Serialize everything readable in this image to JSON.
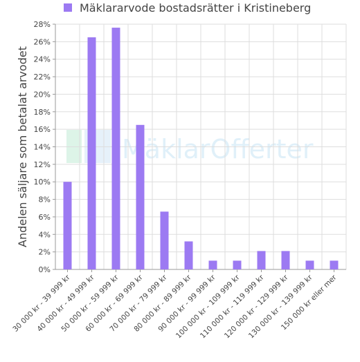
{
  "chart_data": {
    "type": "bar",
    "title": "",
    "legend": {
      "label": "Mäklararvode bostadsrätter i Kristineberg",
      "placement": "top"
    },
    "series": [
      {
        "name": "Mäklararvode bostadsrätter i Kristineberg",
        "color": "#9c7af2",
        "values": [
          10,
          26.5,
          27.6,
          16.5,
          6.6,
          3.2,
          1.0,
          1.0,
          2.1,
          2.1,
          1.0,
          1.0
        ]
      }
    ],
    "categories": [
      "30 000 kr - 39 999 kr",
      "40 000 kr - 49 999 kr",
      "50 000 kr - 59 999 kr",
      "60 000 kr - 69 999 kr",
      "70 000 kr - 79 999 kr",
      "80 000 kr - 89 999 kr",
      "90 000 kr - 99 999 kr",
      "100 000 kr - 109 999 kr",
      "110 000 kr - 119 999 kr",
      "120 000 kr - 129 999 kr",
      "130 000 kr - 139 999 kr",
      "150 000 kr eller mer"
    ],
    "ylabel": "Andelen säljare som betalat arvodet",
    "xlabel": "",
    "ylim": [
      0,
      28
    ],
    "yticks": [
      0,
      2,
      4,
      6,
      8,
      10,
      12,
      14,
      16,
      18,
      20,
      22,
      24,
      26,
      28
    ],
    "ytick_suffix": "%",
    "grid": true,
    "watermark": "MäklarOfferter"
  }
}
